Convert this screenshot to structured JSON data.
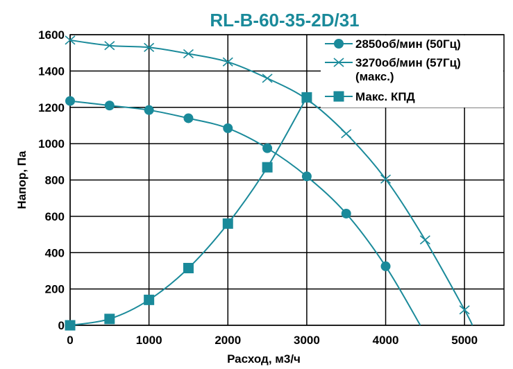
{
  "chart_data": {
    "type": "line",
    "title": "RL-B-60-35-2D/31",
    "xlabel": "Расход, м3/ч",
    "ylabel": "Напор, Па",
    "xlim": [
      0,
      5500
    ],
    "ylim": [
      0,
      1600
    ],
    "xticks": [
      0,
      1000,
      2000,
      3000,
      4000,
      5000
    ],
    "yticks": [
      0,
      200,
      400,
      600,
      800,
      1000,
      1200,
      1400,
      1600
    ],
    "x_tick_labels": [
      "0",
      "1000",
      "2000",
      "3000",
      "4000",
      "5000"
    ],
    "y_tick_labels": [
      "0",
      "200",
      "400",
      "600",
      "800",
      "1000",
      "1200",
      "1400",
      "1600"
    ],
    "grid": true,
    "legend_position": "top-right",
    "colors": {
      "series": "#1a8a9a",
      "title": "#1a8a9a",
      "grid": "#000000"
    },
    "series": [
      {
        "name": "2850об/мин (50Гц)",
        "marker": "circle",
        "x": [
          0,
          500,
          1000,
          1500,
          2000,
          2500,
          3000,
          3500,
          4000
        ],
        "y": [
          1235,
          1210,
          1185,
          1140,
          1085,
          975,
          820,
          615,
          325
        ],
        "curve_end": [
          4440,
          0
        ]
      },
      {
        "name": "3270об/мин  (57Гц)",
        "name_line2": "(макс.)",
        "marker": "x",
        "x": [
          0,
          500,
          1000,
          1500,
          2000,
          2500,
          3000,
          3500,
          4000,
          4500,
          5000
        ],
        "y": [
          1570,
          1540,
          1530,
          1495,
          1450,
          1360,
          1245,
          1055,
          805,
          470,
          85
        ],
        "curve_end": [
          5100,
          0
        ]
      },
      {
        "name": "Макс. КПД",
        "marker": "square",
        "x": [
          0,
          500,
          1000,
          1500,
          2000,
          2500,
          3000
        ],
        "y": [
          0,
          35,
          140,
          315,
          560,
          870,
          1255
        ]
      }
    ]
  }
}
